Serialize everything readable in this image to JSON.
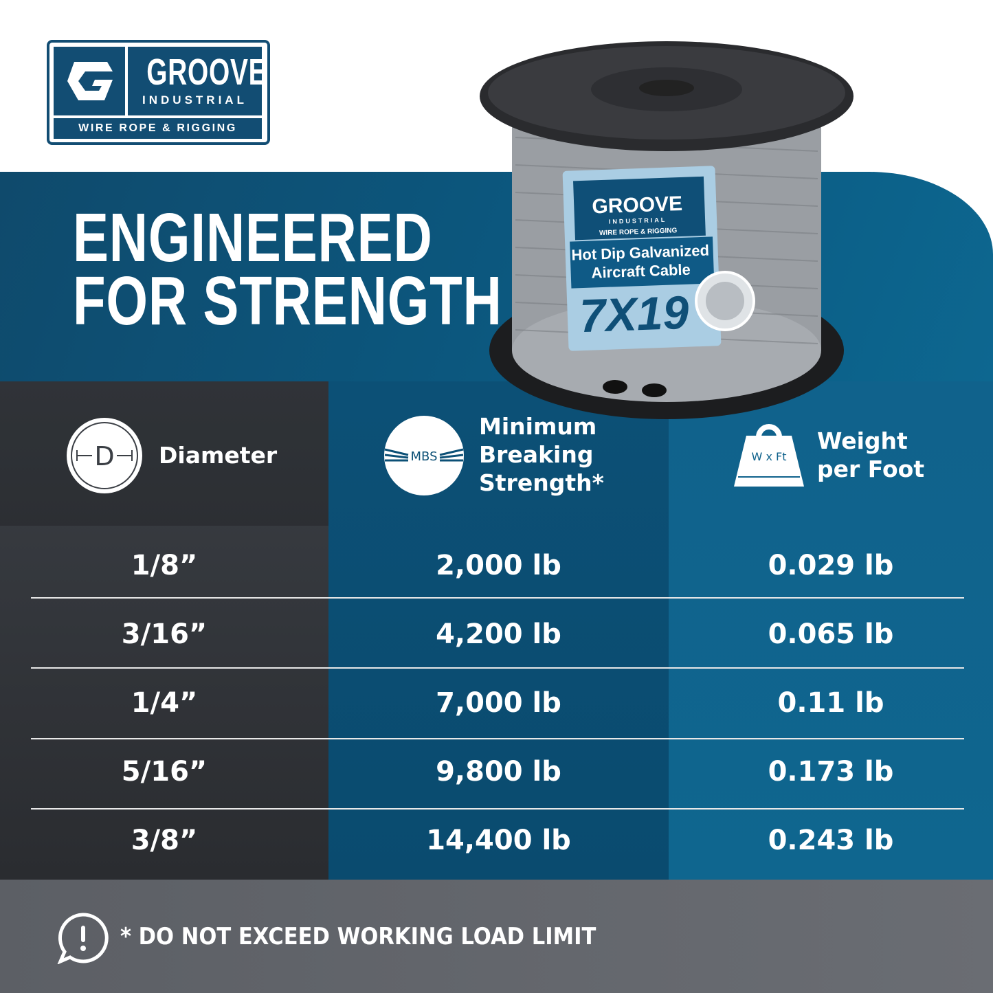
{
  "brand": {
    "name": "GROOVE",
    "sub": "INDUSTRIAL",
    "tagline": "WIRE ROPE & RIGGING",
    "color": "#124d73"
  },
  "heading": {
    "line1": "ENGINEERED",
    "line2": "FOR STRENGTH"
  },
  "product_label": {
    "brand": "GROOVE",
    "sub": "INDUSTRIAL",
    "tagline": "WIRE ROPE & RIGGING",
    "title1": "Hot Dip Galvanized",
    "title2": "Aircraft Cable",
    "construction": "7X19"
  },
  "table": {
    "headers": [
      {
        "label": "Diameter",
        "icon": "diameter-icon",
        "icon_text": "D"
      },
      {
        "label_lines": [
          "Minimum",
          "Breaking",
          "Strength*"
        ],
        "icon": "mbs-icon",
        "icon_text": "MBS"
      },
      {
        "label_lines": [
          "Weight",
          "per Foot"
        ],
        "icon": "weight-icon",
        "icon_text": "W x Ft"
      }
    ],
    "rows": [
      [
        "1/8”",
        "2,000 lb",
        "0.029 lb"
      ],
      [
        "3/16”",
        "4,200 lb",
        "0.065 lb"
      ],
      [
        "1/4”",
        "7,000 lb",
        "0.11 lb"
      ],
      [
        "5/16”",
        "9,800 lb",
        "0.173 lb"
      ],
      [
        "3/8”",
        "14,400 lb",
        "0.243 lb"
      ]
    ]
  },
  "footer": {
    "warning": "* DO NOT EXCEED WORKING LOAD LIMIT",
    "icon": "alert-bubble-icon"
  }
}
